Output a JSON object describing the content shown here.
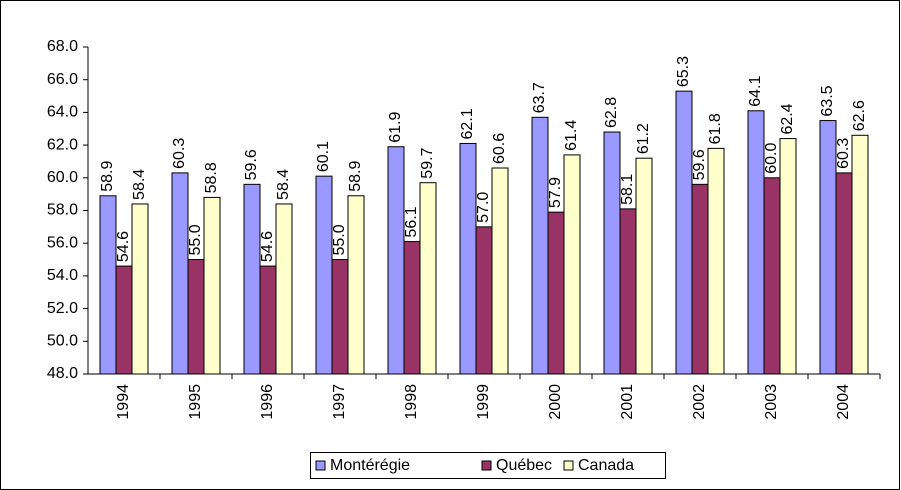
{
  "chart_data": {
    "type": "bar",
    "categories": [
      "1994",
      "1995",
      "1996",
      "1997",
      "1998",
      "1999",
      "2000",
      "2001",
      "2002",
      "2003",
      "2004"
    ],
    "series": [
      {
        "name": "Montérégie",
        "color": "#9999ff",
        "values": [
          58.9,
          60.3,
          59.6,
          60.1,
          61.9,
          62.1,
          63.7,
          62.8,
          65.3,
          64.1,
          63.5
        ],
        "value_labels": [
          "58.9",
          "60.3",
          "59.6",
          "60.1",
          "61.9",
          "62.1",
          "63.7",
          "62.8",
          "65.3",
          "64.1",
          "63.5"
        ]
      },
      {
        "name": "Québec",
        "color": "#993366",
        "values": [
          54.6,
          55,
          54.6,
          55,
          56.1,
          57,
          57.9,
          58.1,
          59.6,
          60,
          60.3
        ],
        "value_labels": [
          "54.6",
          "55.0",
          "54.6",
          "55.0",
          "56.1",
          "57.0",
          "57.9",
          "58.1",
          "59.6",
          "60.0",
          "60.3"
        ]
      },
      {
        "name": "Canada",
        "color": "#ffffcc",
        "values": [
          58.4,
          58.8,
          58.4,
          58.9,
          59.7,
          60.6,
          61.4,
          61.2,
          61.8,
          62.4,
          62.6
        ],
        "value_labels": [
          "58.4",
          "58.8",
          "58.4",
          "58.9",
          "59.7",
          "60.6",
          "61.4",
          "61.2",
          "61.8",
          "62.4",
          "62.6"
        ]
      }
    ],
    "ylim": [
      48,
      68
    ],
    "yticks": [
      {
        "value": 48,
        "label": "48.0"
      },
      {
        "value": 50,
        "label": "50.0"
      },
      {
        "value": 52,
        "label": "52.0"
      },
      {
        "value": 54,
        "label": "54.0"
      },
      {
        "value": 56,
        "label": "56.0"
      },
      {
        "value": 58,
        "label": "58.0"
      },
      {
        "value": 60,
        "label": "60.0"
      },
      {
        "value": 62,
        "label": "62.0"
      },
      {
        "value": 64,
        "label": "64.0"
      },
      {
        "value": 66,
        "label": "66.0"
      },
      {
        "value": 68,
        "label": "68.0"
      }
    ],
    "grid": false,
    "legend": "bottom"
  }
}
